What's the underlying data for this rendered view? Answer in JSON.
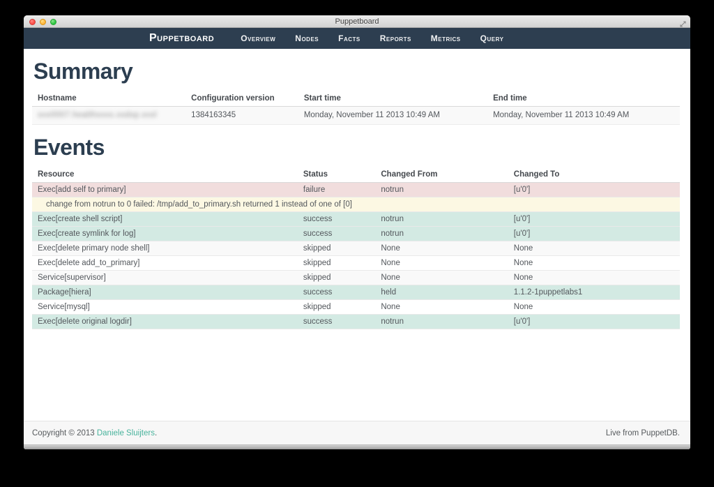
{
  "window": {
    "title": "Puppetboard"
  },
  "navbar": {
    "brand": "Puppetboard",
    "items": [
      {
        "label": "Overview"
      },
      {
        "label": "Nodes"
      },
      {
        "label": "Facts"
      },
      {
        "label": "Reports"
      },
      {
        "label": "Metrics"
      },
      {
        "label": "Query"
      }
    ]
  },
  "summary": {
    "heading": "Summary",
    "columns": [
      "Hostname",
      "Configuration version",
      "Start time",
      "End time"
    ],
    "row": {
      "hostname_masked": "xxx0007.healthxxxx.xxdxp.xxxl",
      "config_version": "1384163345",
      "start_time": "Monday, November 11 2013 10:49 AM",
      "end_time": "Monday, November 11 2013 10:49 AM"
    }
  },
  "events": {
    "heading": "Events",
    "columns": [
      "Resource",
      "Status",
      "Changed From",
      "Changed To"
    ],
    "rows": [
      {
        "resource": "Exec[add self to primary]",
        "status": "failure",
        "from": "notrun",
        "to": "[u'0']",
        "tone": "failure"
      },
      {
        "message": "change from notrun to 0 failed: /tmp/add_to_primary.sh returned 1 instead of one of [0]",
        "tone": "warning"
      },
      {
        "resource": "Exec[create shell script]",
        "status": "success",
        "from": "notrun",
        "to": "[u'0']",
        "tone": "success"
      },
      {
        "resource": "Exec[create symlink for log]",
        "status": "success",
        "from": "notrun",
        "to": "[u'0']",
        "tone": "success"
      },
      {
        "resource": "Exec[delete primary node shell]",
        "status": "skipped",
        "from": "None",
        "to": "None",
        "tone": "odd"
      },
      {
        "resource": "Exec[delete add_to_primary]",
        "status": "skipped",
        "from": "None",
        "to": "None",
        "tone": "even"
      },
      {
        "resource": "Service[supervisor]",
        "status": "skipped",
        "from": "None",
        "to": "None",
        "tone": "odd"
      },
      {
        "resource": "Package[hiera]",
        "status": "success",
        "from": "held",
        "to": "1.1.2-1puppetlabs1",
        "tone": "success"
      },
      {
        "resource": "Service[mysql]",
        "status": "skipped",
        "from": "None",
        "to": "None",
        "tone": "even"
      },
      {
        "resource": "Exec[delete original logdir]",
        "status": "success",
        "from": "notrun",
        "to": "[u'0']",
        "tone": "success"
      }
    ]
  },
  "footer": {
    "copyright_prefix": "Copyright © 2013 ",
    "copyright_link": "Daniele Sluijters",
    "copyright_suffix": ".",
    "right_text": "Live from PuppetDB."
  },
  "colors": {
    "navbar": "#2d3e50",
    "heading": "#2c3e50",
    "failure_row": "#f1dddd",
    "warning_row": "#fcf8e3",
    "success_row": "#d3eae3",
    "stripe_row": "#f9f9f9",
    "link": "#48b39c"
  }
}
